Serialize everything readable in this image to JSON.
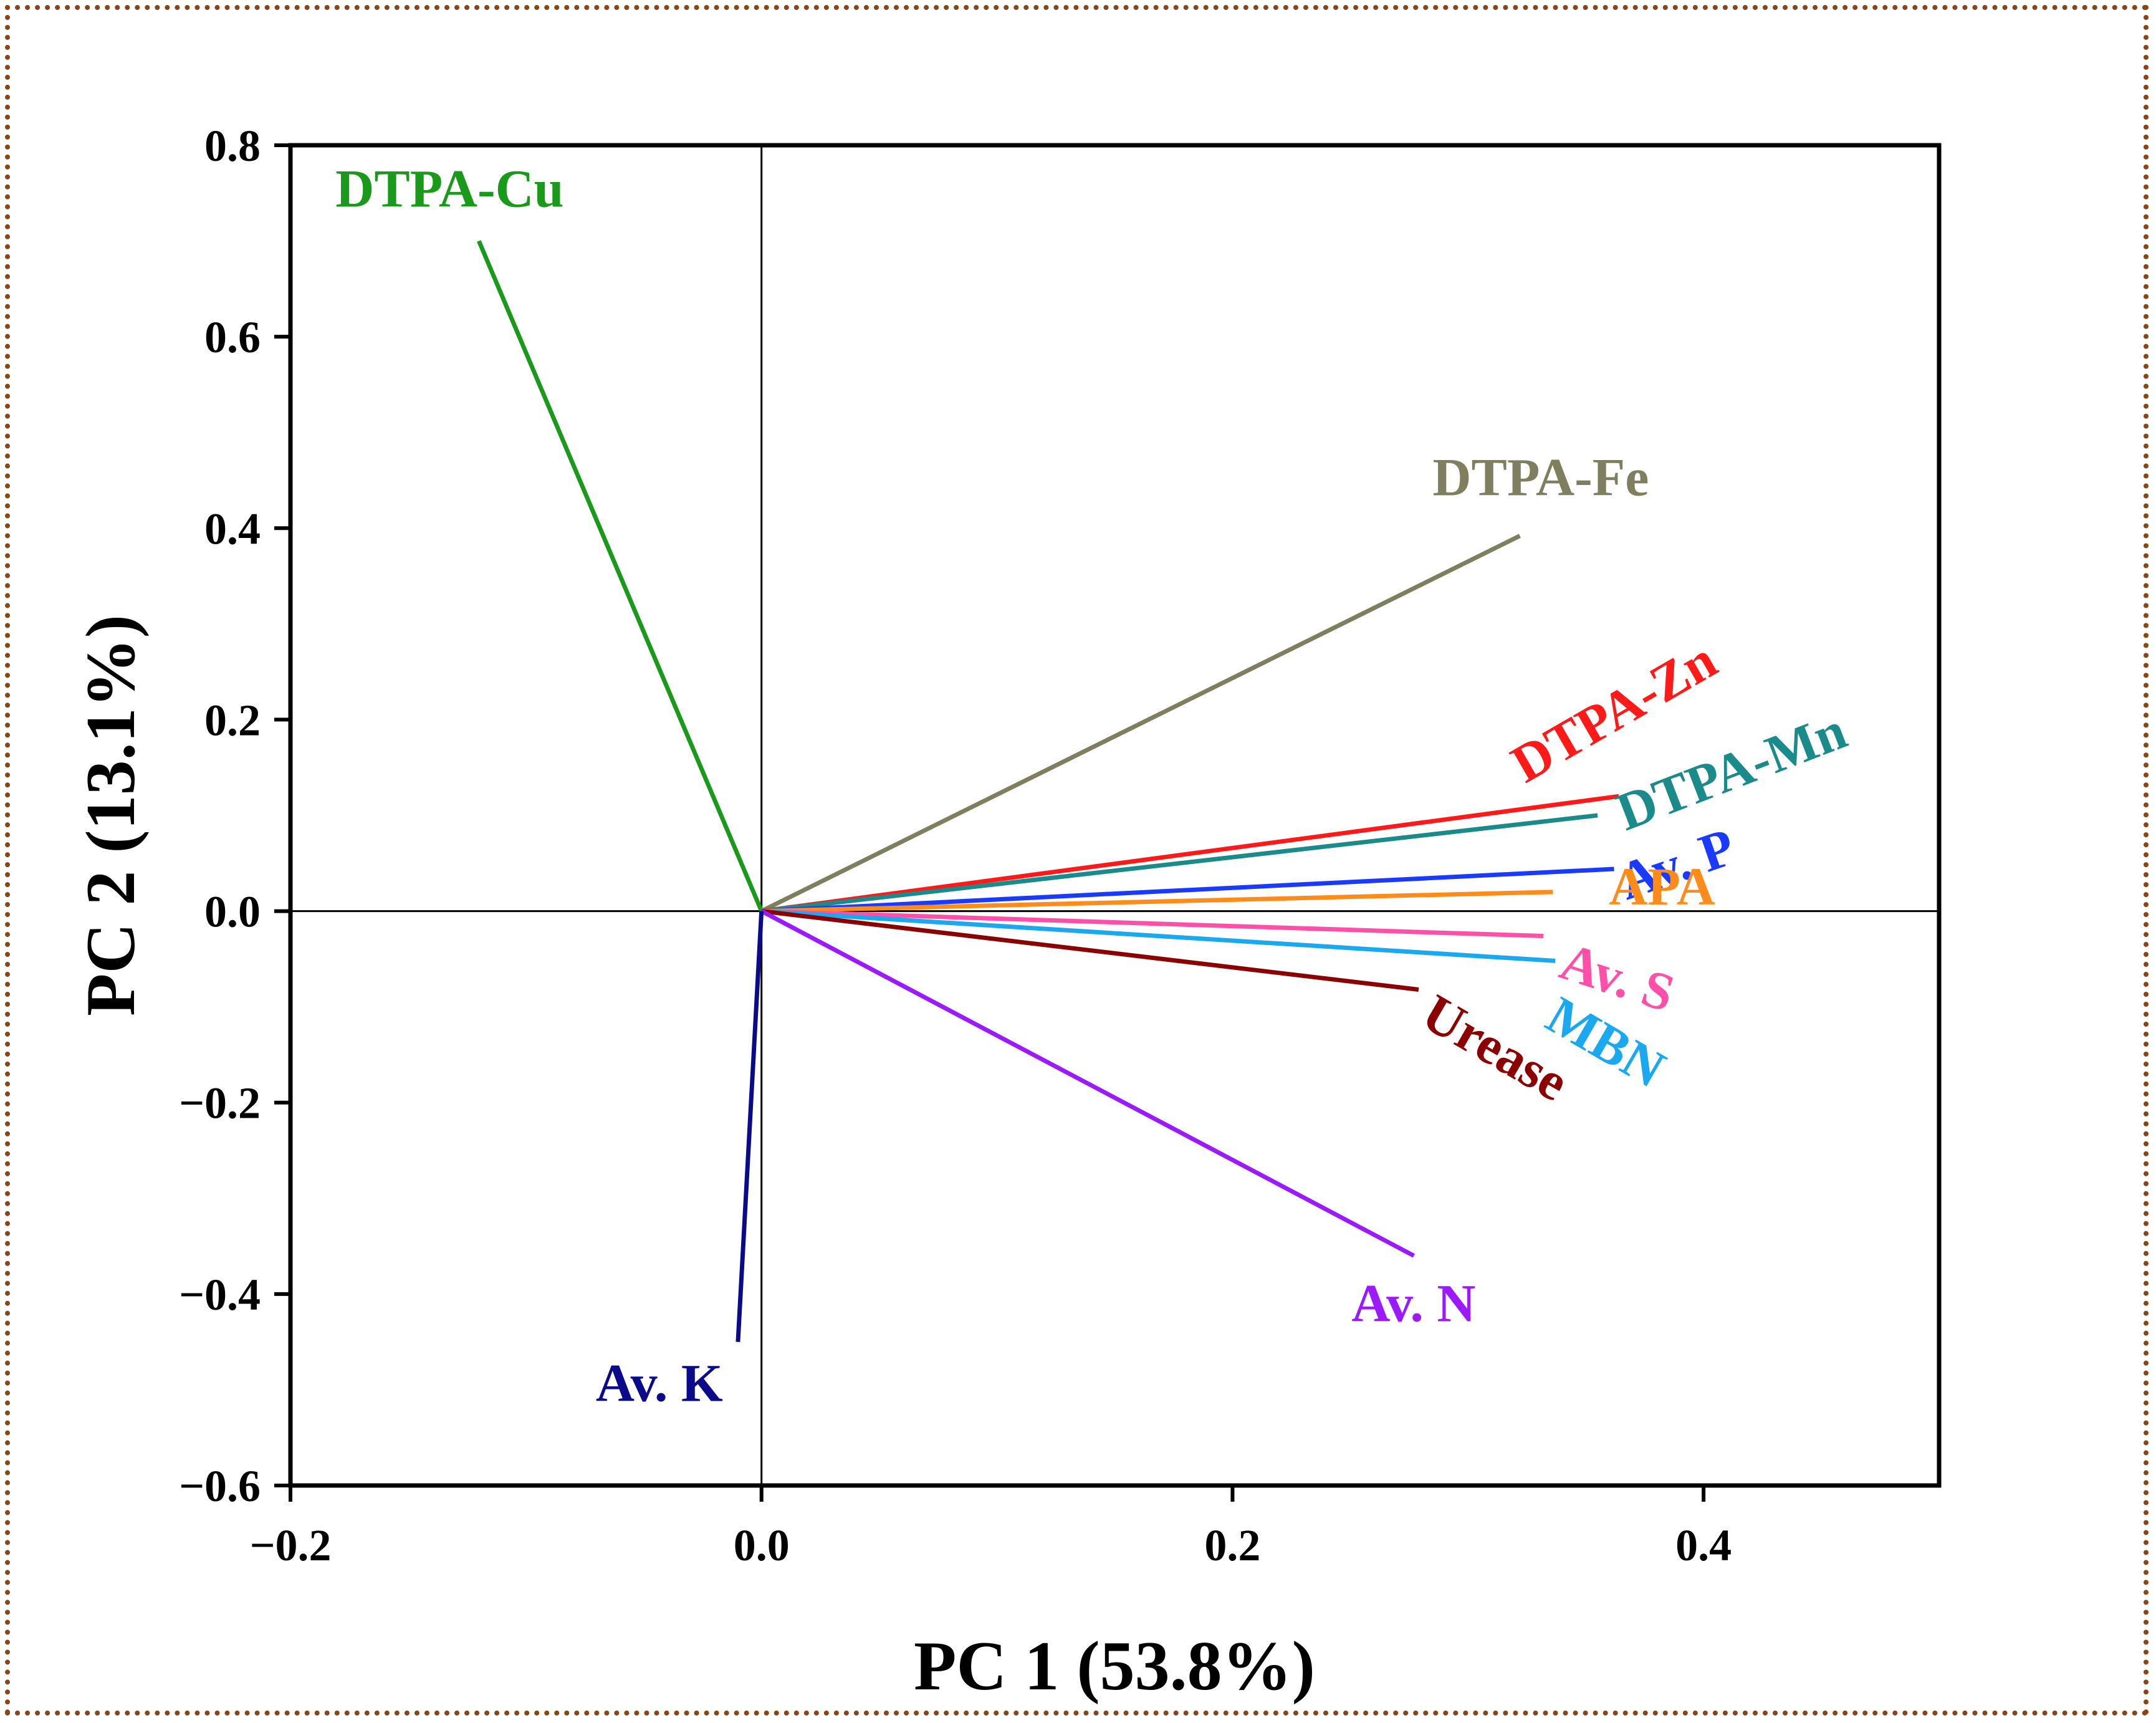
{
  "chart_data": {
    "type": "biplot",
    "title": "",
    "xlabel": "PC 1 (53.8%)",
    "ylabel": "PC 2 (13.1%)",
    "xlim": [
      -0.2,
      0.5
    ],
    "ylim": [
      -0.6,
      0.8
    ],
    "xticks": [
      -0.2,
      0.0,
      0.2,
      0.4
    ],
    "yticks": [
      -0.6,
      -0.4,
      -0.2,
      0.0,
      0.2,
      0.4,
      0.6,
      0.8
    ],
    "xtick_labels": [
      "−0.2",
      "0.0",
      "0.2",
      "0.4"
    ],
    "ytick_labels": [
      "−0.6",
      "−0.4",
      "−0.2",
      "0.0",
      "0.2",
      "0.4",
      "0.6",
      "0.8"
    ],
    "vectors": [
      {
        "name": "DTPA-Cu",
        "x": -0.12,
        "y": 0.7,
        "color": "#1a9a1a"
      },
      {
        "name": "DTPA-Fe",
        "x": 0.322,
        "y": 0.392,
        "color": "#7f7f5f"
      },
      {
        "name": "DTPA-Zn",
        "x": 0.364,
        "y": 0.12,
        "color": "#ff1a1a"
      },
      {
        "name": "DTPA-Mn",
        "x": 0.355,
        "y": 0.1,
        "color": "#1a8a8a"
      },
      {
        "name": "Av. P",
        "x": 0.362,
        "y": 0.044,
        "color": "#1a3aff"
      },
      {
        "name": "APA",
        "x": 0.336,
        "y": 0.02,
        "color": "#ff8c1a"
      },
      {
        "name": "Av. S",
        "x": 0.332,
        "y": -0.026,
        "color": "#ff4fa8"
      },
      {
        "name": "MBN",
        "x": 0.337,
        "y": -0.052,
        "color": "#1aa8f0"
      },
      {
        "name": "Urease",
        "x": 0.279,
        "y": -0.082,
        "color": "#8b0000"
      },
      {
        "name": "Av. N",
        "x": 0.277,
        "y": -0.36,
        "color": "#9b1aff"
      },
      {
        "name": "Av. K",
        "x": -0.01,
        "y": -0.45,
        "color": "#0a0a8a"
      }
    ]
  }
}
